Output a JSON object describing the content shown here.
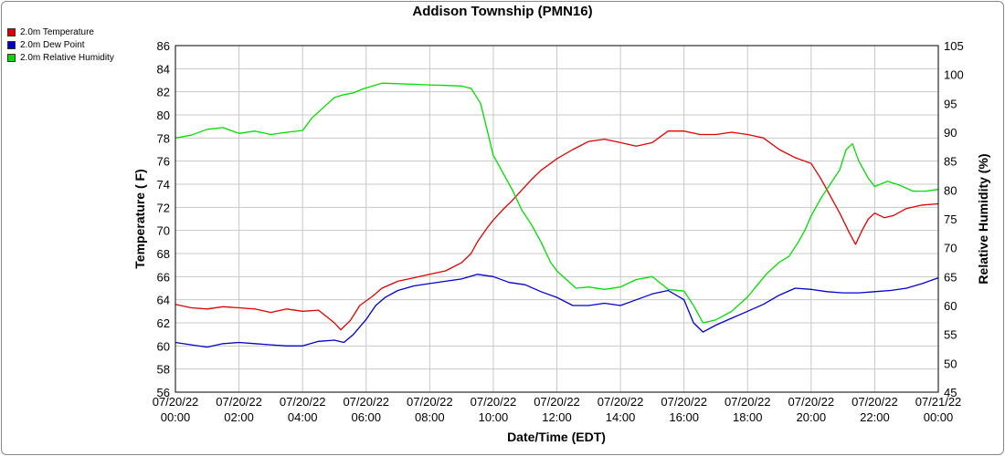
{
  "chart_data": {
    "type": "line",
    "title": "Addison Township (PMN16)",
    "xlabel": "Date/Time (EDT)",
    "ylabel_left": "Temperature ( F)",
    "ylabel_right": "Relative Humidity (%)",
    "ylim_left": [
      56,
      86
    ],
    "ylim_right": [
      45,
      105
    ],
    "grid": true,
    "legend_position": "top-left",
    "y_ticks_left": [
      "56",
      "58",
      "60",
      "62",
      "64",
      "66",
      "68",
      "70",
      "72",
      "74",
      "76",
      "78",
      "80",
      "82",
      "84",
      "86"
    ],
    "y_ticks_right": [
      "45",
      "50",
      "55",
      "60",
      "65",
      "70",
      "75",
      "80",
      "85",
      "90",
      "95",
      "100",
      "105"
    ],
    "x_ticks": [
      {
        "date": "07/20/22",
        "time": "00:00"
      },
      {
        "date": "07/20/22",
        "time": "02:00"
      },
      {
        "date": "07/20/22",
        "time": "04:00"
      },
      {
        "date": "07/20/22",
        "time": "06:00"
      },
      {
        "date": "07/20/22",
        "time": "08:00"
      },
      {
        "date": "07/20/22",
        "time": "10:00"
      },
      {
        "date": "07/20/22",
        "time": "12:00"
      },
      {
        "date": "07/20/22",
        "time": "14:00"
      },
      {
        "date": "07/20/22",
        "time": "16:00"
      },
      {
        "date": "07/20/22",
        "time": "18:00"
      },
      {
        "date": "07/20/22",
        "time": "20:00"
      },
      {
        "date": "07/20/22",
        "time": "22:00"
      },
      {
        "date": "07/21/22",
        "time": "00:00"
      }
    ],
    "x_hours": [
      0,
      2,
      4,
      6,
      8,
      10,
      12,
      14,
      16,
      18,
      20,
      22,
      24
    ],
    "series": [
      {
        "name": "2.0m Temperature",
        "color": "#e00000",
        "axis": "left",
        "x": [
          0,
          0.5,
          1,
          1.5,
          2,
          2.5,
          3,
          3.5,
          4,
          4.5,
          5,
          5.2,
          5.5,
          5.8,
          6,
          6.2,
          6.5,
          7,
          7.5,
          8,
          8.5,
          9,
          9.3,
          9.5,
          9.8,
          10,
          10.3,
          10.6,
          10.9,
          11.2,
          11.5,
          12,
          12.5,
          13,
          13.5,
          14,
          14.5,
          15,
          15.5,
          16,
          16.5,
          17,
          17.5,
          18,
          18.5,
          19,
          19.5,
          20,
          20.3,
          20.6,
          20.9,
          21.2,
          21.4,
          21.6,
          21.8,
          22,
          22.3,
          22.6,
          23,
          23.5,
          24
        ],
        "y": [
          63.6,
          63.3,
          63.2,
          63.4,
          63.3,
          63.2,
          62.9,
          63.2,
          63.0,
          63.1,
          62.0,
          61.4,
          62.2,
          63.5,
          63.9,
          64.3,
          65.0,
          65.6,
          65.9,
          66.2,
          66.5,
          67.2,
          68.0,
          69.0,
          70.2,
          70.9,
          71.8,
          72.6,
          73.5,
          74.4,
          75.2,
          76.2,
          77.0,
          77.7,
          77.9,
          77.6,
          77.3,
          77.6,
          78.6,
          78.6,
          78.3,
          78.3,
          78.5,
          78.3,
          78.0,
          77.0,
          76.3,
          75.8,
          74.5,
          73.0,
          71.5,
          69.8,
          68.8,
          70.0,
          71.0,
          71.5,
          71.1,
          71.3,
          71.9,
          72.2,
          72.3
        ]
      },
      {
        "name": "2.0m Dew Point",
        "color": "#0000cc",
        "axis": "left",
        "x": [
          0,
          0.5,
          1,
          1.5,
          2,
          2.5,
          3,
          3.5,
          4,
          4.5,
          5,
          5.3,
          5.6,
          6,
          6.3,
          6.6,
          7,
          7.5,
          8,
          8.5,
          9,
          9.5,
          10,
          10.5,
          11,
          11.5,
          12,
          12.5,
          13,
          13.5,
          14,
          14.5,
          15,
          15.5,
          16,
          16.3,
          16.6,
          17,
          17.5,
          18,
          18.5,
          19,
          19.5,
          20,
          20.5,
          21,
          21.5,
          22,
          22.5,
          23,
          23.5,
          24
        ],
        "y": [
          60.3,
          60.1,
          59.9,
          60.2,
          60.3,
          60.2,
          60.1,
          60.0,
          60.0,
          60.4,
          60.5,
          60.3,
          61.0,
          62.3,
          63.5,
          64.2,
          64.8,
          65.2,
          65.4,
          65.6,
          65.8,
          66.2,
          66.0,
          65.5,
          65.3,
          64.7,
          64.2,
          63.5,
          63.5,
          63.7,
          63.5,
          64.0,
          64.5,
          64.8,
          64.0,
          62.0,
          61.2,
          61.8,
          62.4,
          63.0,
          63.6,
          64.4,
          65.0,
          64.9,
          64.7,
          64.6,
          64.6,
          64.7,
          64.8,
          65.0,
          65.4,
          65.9
        ]
      },
      {
        "name": "2.0m Relative Humidity",
        "color": "#00dd00",
        "axis": "right",
        "x": [
          0,
          0.5,
          1,
          1.5,
          2,
          2.5,
          3,
          3.5,
          4,
          4.3,
          4.6,
          5,
          5.3,
          5.6,
          5.9,
          6.2,
          6.5,
          7,
          7.5,
          8,
          8.5,
          9,
          9.3,
          9.6,
          9.8,
          10,
          10.3,
          10.6,
          10.9,
          11.2,
          11.5,
          11.8,
          12,
          12.3,
          12.6,
          13,
          13.5,
          14,
          14.5,
          15,
          15.5,
          16,
          16.3,
          16.6,
          17,
          17.5,
          18,
          18.3,
          18.6,
          19,
          19.3,
          19.6,
          19.8,
          20,
          20.3,
          20.6,
          20.9,
          21.1,
          21.3,
          21.5,
          21.8,
          22,
          22.4,
          22.8,
          23.2,
          23.6,
          24
        ],
        "y": [
          89.0,
          89.5,
          90.5,
          90.8,
          89.8,
          90.2,
          89.6,
          90.0,
          90.3,
          92.5,
          94.0,
          96.0,
          96.5,
          96.8,
          97.5,
          98.0,
          98.5,
          98.4,
          98.3,
          98.2,
          98.1,
          98.0,
          97.6,
          95.0,
          90.5,
          86.0,
          83.0,
          80.0,
          76.5,
          74.0,
          71.0,
          67.5,
          66.0,
          64.5,
          63.0,
          63.2,
          62.8,
          63.2,
          64.5,
          65.0,
          62.8,
          62.5,
          60.0,
          57.0,
          57.5,
          59.0,
          61.5,
          63.5,
          65.5,
          67.5,
          68.5,
          71.0,
          73.0,
          75.5,
          78.5,
          81.0,
          83.5,
          87.0,
          88.0,
          85.0,
          82.0,
          80.6,
          81.5,
          80.8,
          79.8,
          79.8,
          80.1
        ]
      }
    ]
  }
}
